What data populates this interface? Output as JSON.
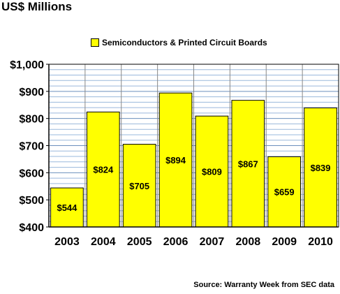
{
  "chart_data": {
    "type": "bar",
    "title": "US$ Millions",
    "categories": [
      "2003",
      "2004",
      "2005",
      "2006",
      "2007",
      "2008",
      "2009",
      "2010"
    ],
    "series": [
      {
        "name": "Semiconductors & Printed Circuit Boards",
        "values": [
          544,
          824,
          705,
          894,
          809,
          867,
          659,
          839
        ],
        "labels": [
          "$544",
          "$824",
          "$705",
          "$894",
          "$809",
          "$867",
          "$659",
          "$839"
        ]
      }
    ],
    "ylim": [
      400,
      1000
    ],
    "yticks": [
      400,
      500,
      600,
      700,
      800,
      900,
      1000
    ],
    "ytick_labels": [
      "$400",
      "$500",
      "$600",
      "$700",
      "$800",
      "$900",
      "$1,000"
    ],
    "minor_grid_step": 20,
    "grid": true,
    "legend": "top-center",
    "bar_color": "#ffff00",
    "grid_color": "#9ab8dc",
    "source": "Source: Warranty Week from SEC data"
  }
}
